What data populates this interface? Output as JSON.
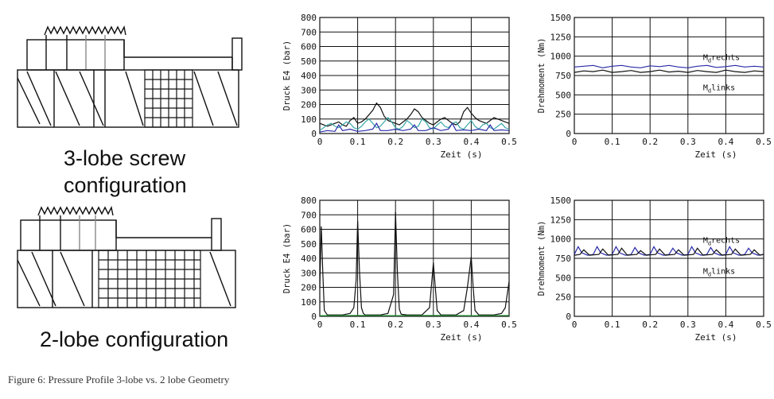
{
  "configs": [
    {
      "label_line1": "3-lobe screw",
      "label_line2": "configuration"
    },
    {
      "label_line1": "2-lobe configuration"
    }
  ],
  "caption": "Figure 6: Pressure Profile 3-lobe vs. 2 lobe Geometry",
  "chart_data": [
    {
      "id": "pressure-3lobe",
      "type": "line",
      "xlabel": "Zeit (s)",
      "ylabel": "Druck E4 (bar)",
      "xlim": [
        0,
        0.5
      ],
      "ylim": [
        0,
        800
      ],
      "xticks": [
        0,
        0.1,
        0.2,
        0.3,
        0.4,
        0.5
      ],
      "xtick_labels": [
        "0",
        "0.1",
        "0.2",
        "0.3",
        "0.4",
        "0.5"
      ],
      "yticks": [
        0,
        100,
        200,
        300,
        400,
        500,
        600,
        700,
        800
      ],
      "ytick_labels": [
        "0",
        "100",
        "200",
        "300",
        "400",
        "500",
        "600",
        "700",
        "800"
      ],
      "grid": true,
      "annotations": [],
      "series": [
        {
          "color": "#111111",
          "x": [
            0,
            0.01,
            0.02,
            0.03,
            0.04,
            0.05,
            0.06,
            0.07,
            0.08,
            0.09,
            0.1,
            0.11,
            0.12,
            0.13,
            0.14,
            0.15,
            0.16,
            0.17,
            0.18,
            0.19,
            0.2,
            0.21,
            0.22,
            0.23,
            0.24,
            0.25,
            0.26,
            0.27,
            0.28,
            0.29,
            0.3,
            0.31,
            0.32,
            0.33,
            0.34,
            0.35,
            0.36,
            0.37,
            0.38,
            0.39,
            0.4,
            0.41,
            0.42,
            0.43,
            0.44,
            0.45,
            0.46,
            0.47,
            0.48,
            0.49,
            0.5
          ],
          "y": [
            70,
            60,
            50,
            60,
            70,
            80,
            60,
            50,
            90,
            110,
            70,
            80,
            100,
            130,
            160,
            210,
            180,
            120,
            90,
            80,
            70,
            60,
            80,
            100,
            130,
            170,
            150,
            110,
            90,
            70,
            60,
            80,
            100,
            110,
            90,
            70,
            60,
            80,
            150,
            180,
            140,
            110,
            90,
            80,
            70,
            90,
            110,
            100,
            90,
            80,
            70
          ]
        },
        {
          "color": "#3aa8a8",
          "x": [
            0,
            0.01,
            0.02,
            0.03,
            0.04,
            0.05,
            0.06,
            0.07,
            0.08,
            0.09,
            0.1,
            0.11,
            0.12,
            0.13,
            0.14,
            0.15,
            0.16,
            0.17,
            0.18,
            0.19,
            0.2,
            0.21,
            0.22,
            0.23,
            0.24,
            0.25,
            0.26,
            0.27,
            0.28,
            0.29,
            0.3,
            0.31,
            0.32,
            0.33,
            0.34,
            0.35,
            0.36,
            0.37,
            0.38,
            0.39,
            0.4,
            0.41,
            0.42,
            0.43,
            0.44,
            0.45,
            0.46,
            0.47,
            0.48,
            0.49,
            0.5
          ],
          "y": [
            20,
            40,
            60,
            70,
            50,
            40,
            60,
            80,
            70,
            40,
            30,
            50,
            80,
            100,
            70,
            40,
            50,
            80,
            110,
            80,
            40,
            30,
            50,
            90,
            70,
            40,
            50,
            100,
            80,
            40,
            30,
            60,
            80,
            50,
            40,
            70,
            80,
            40,
            30,
            60,
            90,
            50,
            30,
            60,
            70,
            40,
            30,
            50,
            70,
            40,
            30
          ]
        },
        {
          "color": "#2a2aa8",
          "x": [
            0,
            0.02,
            0.04,
            0.05,
            0.06,
            0.08,
            0.1,
            0.12,
            0.14,
            0.15,
            0.16,
            0.18,
            0.2,
            0.22,
            0.24,
            0.25,
            0.26,
            0.28,
            0.3,
            0.32,
            0.34,
            0.35,
            0.36,
            0.38,
            0.4,
            0.42,
            0.44,
            0.45,
            0.46,
            0.48,
            0.5
          ],
          "y": [
            10,
            20,
            15,
            60,
            20,
            30,
            15,
            20,
            30,
            70,
            20,
            20,
            30,
            20,
            30,
            60,
            20,
            20,
            40,
            20,
            30,
            70,
            20,
            25,
            20,
            30,
            20,
            60,
            20,
            25,
            20
          ]
        }
      ]
    },
    {
      "id": "torque-3lobe",
      "type": "line",
      "xlabel": "Zeit (s)",
      "ylabel": "Drehmoment (Nm)",
      "xlim": [
        0,
        0.5
      ],
      "ylim": [
        0,
        1500
      ],
      "xticks": [
        0,
        0.1,
        0.2,
        0.3,
        0.4,
        0.5
      ],
      "xtick_labels": [
        "0",
        "0.1",
        "0.2",
        "0.3",
        "0.4",
        "0.5"
      ],
      "yticks": [
        0,
        250,
        500,
        750,
        1000,
        1250,
        1500
      ],
      "ytick_labels": [
        "0",
        "250",
        "500",
        "750",
        "1000",
        "1250",
        "1500"
      ],
      "grid": true,
      "annotations": [
        {
          "text": "M_d rechts",
          "base": "M",
          "sub": "d",
          "rest": "rechts",
          "x": 0.34,
          "y": 950
        },
        {
          "text": "M_d links",
          "base": "M",
          "sub": "d",
          "rest": "links",
          "x": 0.34,
          "y": 560
        }
      ],
      "series": [
        {
          "color": "#2a2aa8",
          "x": [
            0,
            0.025,
            0.05,
            0.075,
            0.1,
            0.125,
            0.15,
            0.175,
            0.2,
            0.225,
            0.25,
            0.275,
            0.3,
            0.325,
            0.35,
            0.375,
            0.4,
            0.425,
            0.45,
            0.475,
            0.5
          ],
          "y": [
            860,
            870,
            880,
            850,
            870,
            880,
            860,
            850,
            875,
            865,
            880,
            860,
            850,
            870,
            880,
            855,
            865,
            880,
            860,
            870,
            860
          ]
        },
        {
          "color": "#111111",
          "x": [
            0,
            0.025,
            0.05,
            0.075,
            0.1,
            0.125,
            0.15,
            0.175,
            0.2,
            0.225,
            0.25,
            0.275,
            0.3,
            0.325,
            0.35,
            0.375,
            0.4,
            0.425,
            0.45,
            0.475,
            0.5
          ],
          "y": [
            790,
            810,
            800,
            820,
            790,
            800,
            815,
            790,
            800,
            820,
            795,
            805,
            790,
            815,
            800,
            790,
            820,
            800,
            790,
            810,
            800
          ]
        }
      ]
    },
    {
      "id": "pressure-2lobe",
      "type": "line",
      "xlabel": "Zeit (s)",
      "ylabel": "Druck E4 (bar)",
      "xlim": [
        0,
        0.5
      ],
      "ylim": [
        0,
        800
      ],
      "xticks": [
        0,
        0.1,
        0.2,
        0.3,
        0.4,
        0.5
      ],
      "xtick_labels": [
        "0",
        "0.1",
        "0.2",
        "0.3",
        "0.4",
        "0.5"
      ],
      "yticks": [
        0,
        100,
        200,
        300,
        400,
        500,
        600,
        700,
        800
      ],
      "ytick_labels": [
        "0",
        "100",
        "200",
        "300",
        "400",
        "500",
        "600",
        "700",
        "800"
      ],
      "grid": true,
      "annotations": [],
      "series": [
        {
          "color": "#111111",
          "x": [
            0,
            0.004,
            0.008,
            0.012,
            0.02,
            0.04,
            0.06,
            0.08,
            0.09,
            0.096,
            0.1,
            0.105,
            0.11,
            0.115,
            0.12,
            0.14,
            0.16,
            0.18,
            0.195,
            0.2,
            0.205,
            0.21,
            0.215,
            0.23,
            0.25,
            0.27,
            0.29,
            0.3,
            0.305,
            0.31,
            0.32,
            0.34,
            0.36,
            0.38,
            0.39,
            0.4,
            0.405,
            0.41,
            0.42,
            0.44,
            0.46,
            0.48,
            0.49,
            0.495,
            0.5
          ],
          "y": [
            200,
            620,
            300,
            40,
            10,
            10,
            10,
            20,
            60,
            250,
            660,
            300,
            60,
            20,
            10,
            10,
            10,
            20,
            150,
            720,
            300,
            50,
            15,
            10,
            10,
            10,
            60,
            370,
            200,
            40,
            10,
            10,
            10,
            40,
            200,
            410,
            200,
            40,
            10,
            10,
            10,
            20,
            60,
            150,
            240
          ]
        },
        {
          "color": "#2a9a3a",
          "x": [
            0,
            0.1,
            0.2,
            0.3,
            0.4,
            0.5
          ],
          "y": [
            5,
            6,
            5,
            6,
            5,
            6
          ]
        }
      ]
    },
    {
      "id": "torque-2lobe",
      "type": "line",
      "xlabel": "Zeit (s)",
      "ylabel": "Drehmoment (Nm)",
      "xlim": [
        0,
        0.5
      ],
      "ylim": [
        0,
        1500
      ],
      "xticks": [
        0,
        0.1,
        0.2,
        0.3,
        0.4,
        0.5
      ],
      "xtick_labels": [
        "0",
        "0.1",
        "0.2",
        "0.3",
        "0.4",
        "0.5"
      ],
      "yticks": [
        0,
        250,
        500,
        750,
        1000,
        1250,
        1500
      ],
      "ytick_labels": [
        "0",
        "250",
        "500",
        "750",
        "1000",
        "1250",
        "1500"
      ],
      "grid": true,
      "annotations": [
        {
          "text": "M_d rechts",
          "base": "M",
          "sub": "d",
          "rest": "rechts",
          "x": 0.34,
          "y": 950
        },
        {
          "text": "M_d links",
          "base": "M",
          "sub": "d",
          "rest": "links",
          "x": 0.34,
          "y": 550
        }
      ],
      "series": [
        {
          "color": "#2a2aa8",
          "x": [
            0,
            0.01,
            0.02,
            0.035,
            0.05,
            0.06,
            0.07,
            0.085,
            0.1,
            0.11,
            0.12,
            0.135,
            0.15,
            0.16,
            0.17,
            0.185,
            0.2,
            0.21,
            0.22,
            0.235,
            0.25,
            0.26,
            0.27,
            0.285,
            0.3,
            0.31,
            0.32,
            0.335,
            0.35,
            0.36,
            0.37,
            0.385,
            0.4,
            0.41,
            0.42,
            0.435,
            0.45,
            0.46,
            0.47,
            0.485,
            0.5
          ],
          "y": [
            800,
            900,
            820,
            790,
            800,
            900,
            820,
            790,
            800,
            900,
            820,
            790,
            800,
            890,
            820,
            790,
            800,
            900,
            820,
            790,
            800,
            880,
            820,
            790,
            800,
            900,
            820,
            790,
            800,
            890,
            820,
            790,
            800,
            900,
            820,
            790,
            800,
            880,
            820,
            790,
            800
          ]
        },
        {
          "color": "#111111",
          "x": [
            0,
            0.015,
            0.025,
            0.04,
            0.065,
            0.075,
            0.09,
            0.115,
            0.125,
            0.14,
            0.165,
            0.175,
            0.19,
            0.215,
            0.225,
            0.24,
            0.265,
            0.275,
            0.29,
            0.315,
            0.325,
            0.34,
            0.365,
            0.375,
            0.39,
            0.415,
            0.425,
            0.44,
            0.465,
            0.475,
            0.49,
            0.5
          ],
          "y": [
            790,
            800,
            860,
            790,
            800,
            870,
            790,
            800,
            880,
            790,
            800,
            850,
            790,
            800,
            870,
            790,
            800,
            860,
            790,
            800,
            880,
            790,
            800,
            860,
            790,
            800,
            870,
            790,
            800,
            860,
            790,
            800
          ]
        }
      ]
    }
  ]
}
